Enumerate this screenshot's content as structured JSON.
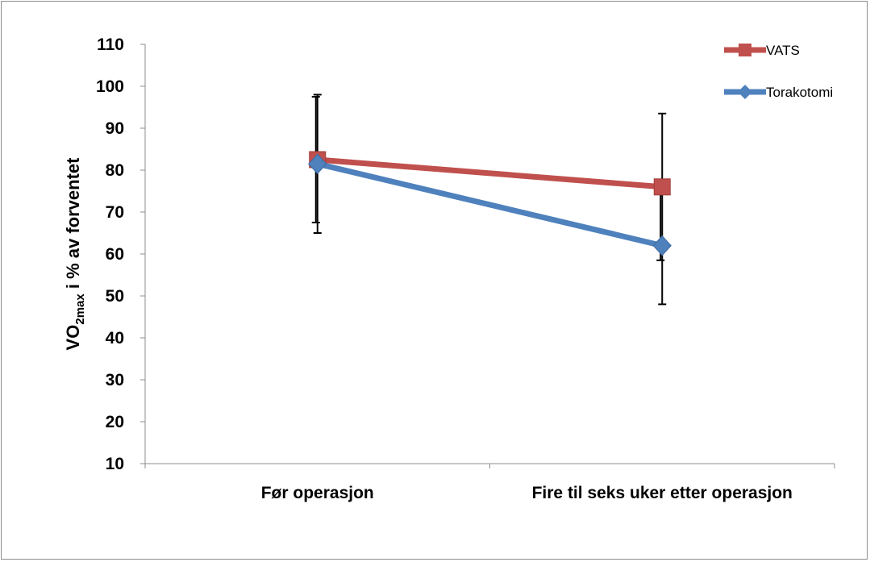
{
  "chart_data": {
    "type": "line",
    "categories": [
      "Før operasjon",
      "Fire til seks uker etter operasjon"
    ],
    "ylabel": {
      "main": "VO",
      "sub": "2max",
      "rest": " i % av forventet"
    },
    "ylim": [
      10,
      110
    ],
    "yticks": [
      10,
      20,
      30,
      40,
      50,
      60,
      70,
      80,
      90,
      100,
      110
    ],
    "grid": false,
    "legend_position": "top-right",
    "series": [
      {
        "name": "VATS",
        "color": "#c0504d",
        "marker": "square",
        "values": [
          82.5,
          76
        ],
        "error_bars": [
          [
            65,
            98
          ],
          [
            48,
            93.5
          ]
        ]
      },
      {
        "name": "Torakotomi",
        "color": "#4f81bd",
        "marker": "diamond",
        "values": [
          81.5,
          62
        ],
        "error_bars": [
          [
            67.5,
            97.5
          ],
          [
            58.5,
            76
          ]
        ]
      }
    ]
  }
}
